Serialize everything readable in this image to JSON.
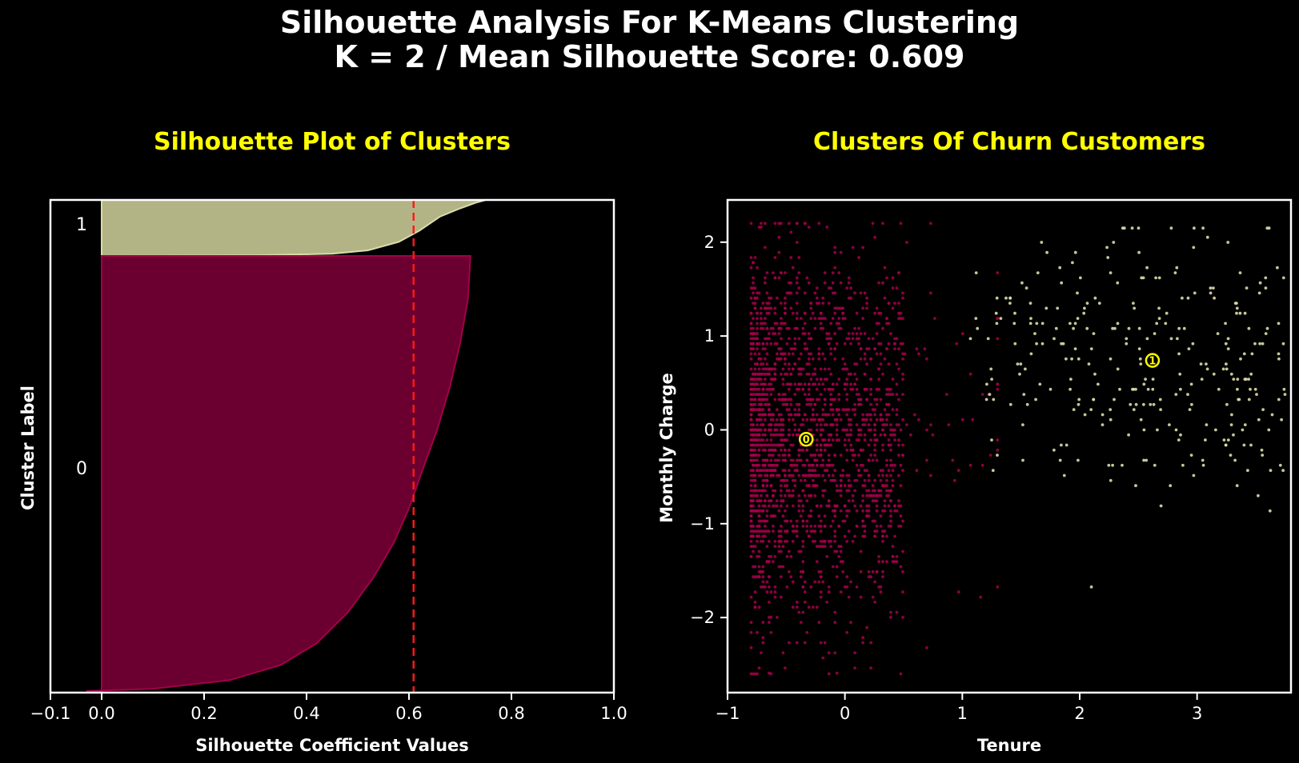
{
  "figure": {
    "title_line1": "Silhouette Analysis For K-Means Clustering",
    "title_line2": "K = 2 / Mean Silhouette Score: 0.609"
  },
  "colors": {
    "cluster_0": "#6b0030",
    "cluster_0_edge": "#a3004a",
    "cluster_1": "#b3b486",
    "cluster_1_edge": "#dcdca8",
    "mean_line": "#ff1a1a",
    "centroid": "#ffff00",
    "axes": "#ffffff",
    "background": "#000000"
  },
  "chart_data": [
    {
      "type": "area",
      "title": "Silhouette Plot of Clusters",
      "xlabel": "Silhouette Coefficient Values",
      "ylabel": "Cluster Label",
      "xlim": [
        -0.1,
        1.0
      ],
      "xticks": [
        "−0.1",
        "0.0",
        "0.2",
        "0.4",
        "0.6",
        "0.8",
        "1.0"
      ],
      "xtick_values": [
        -0.1,
        0.0,
        0.2,
        0.4,
        0.6,
        0.8,
        1.0
      ],
      "yticks": false,
      "cluster_labels": [
        "1",
        "0"
      ],
      "mean_silhouette_score": 0.609,
      "series": [
        {
          "name": "1",
          "sorted_silhouette_profile": [
            [
              0.75,
              0.0
            ],
            [
              0.73,
              0.05
            ],
            [
              0.7,
              0.15
            ],
            [
              0.66,
              0.3
            ],
            [
              0.62,
              0.55
            ],
            [
              0.58,
              0.75
            ],
            [
              0.52,
              0.9
            ],
            [
              0.45,
              0.96
            ],
            [
              0.3,
              0.99
            ],
            [
              0.0,
              1.0
            ]
          ]
        },
        {
          "name": "0",
          "sorted_silhouette_profile": [
            [
              0.72,
              0.0
            ],
            [
              0.715,
              0.1
            ],
            [
              0.7,
              0.2
            ],
            [
              0.68,
              0.3
            ],
            [
              0.655,
              0.4
            ],
            [
              0.63,
              0.48
            ],
            [
              0.6,
              0.58
            ],
            [
              0.57,
              0.66
            ],
            [
              0.53,
              0.74
            ],
            [
              0.48,
              0.82
            ],
            [
              0.42,
              0.89
            ],
            [
              0.35,
              0.94
            ],
            [
              0.25,
              0.975
            ],
            [
              0.1,
              0.995
            ],
            [
              -0.03,
              1.0
            ]
          ]
        }
      ]
    },
    {
      "type": "scatter",
      "title": "Clusters Of Churn Customers",
      "xlabel": "Tenure",
      "ylabel": "Monthly Charge",
      "xlim": [
        -1.0,
        3.8
      ],
      "ylim": [
        -2.8,
        2.45
      ],
      "xticks": [
        "−1",
        "0",
        "1",
        "2",
        "3"
      ],
      "xtick_values": [
        -1,
        0,
        1,
        2,
        3
      ],
      "yticks": [
        "2",
        "1",
        "0",
        "−1",
        "−2"
      ],
      "ytick_values": [
        2,
        1,
        0,
        -1,
        -2
      ],
      "series": [
        {
          "name": "0",
          "point_count_approx": 2100,
          "distribution": {
            "x_range": [
              -0.8,
              1.3
            ],
            "x_dense_range": [
              -0.8,
              0.5
            ],
            "y_range": [
              -2.6,
              2.2
            ]
          },
          "centroid": [
            -0.33,
            -0.1
          ]
        },
        {
          "name": "1",
          "point_count_approx": 300,
          "distribution": {
            "x_range": [
              1.0,
              3.75
            ],
            "y_range": [
              -1.7,
              2.15
            ]
          },
          "centroid": [
            2.62,
            0.74
          ]
        }
      ]
    }
  ]
}
